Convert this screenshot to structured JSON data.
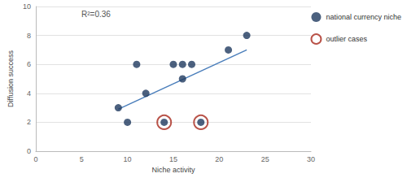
{
  "chart_data": {
    "type": "scatter",
    "x_label": "Niche activity",
    "y_label": "Diffusion success",
    "annotations": [
      "R²=0.36"
    ],
    "xlim": [
      0,
      30
    ],
    "xticks": [
      0,
      5,
      10,
      15,
      20,
      25,
      30
    ],
    "ylim": [
      0,
      10
    ],
    "yticks": [
      0,
      2,
      4,
      6,
      8,
      10
    ],
    "grid": "y",
    "legend": "right",
    "series": [
      {
        "name": "national currency niche",
        "type": "scatter",
        "marker": "circle",
        "color": "#1f3a5f",
        "x": [
          9,
          10,
          11,
          12,
          14,
          15,
          16,
          16,
          17,
          18,
          21,
          23
        ],
        "values": [
          3,
          2,
          6,
          4,
          2,
          6,
          5,
          6,
          6,
          2,
          7,
          8
        ]
      },
      {
        "name": "outlier cases",
        "type": "scatter",
        "marker": "ring",
        "color": "#a8281c",
        "x": [
          14,
          18
        ],
        "values": [
          2,
          2
        ]
      },
      {
        "type": "line",
        "line_style": "solid",
        "color": "#4a7ebb",
        "x": [
          9,
          23
        ],
        "values": [
          2.9,
          7.0
        ]
      }
    ]
  }
}
